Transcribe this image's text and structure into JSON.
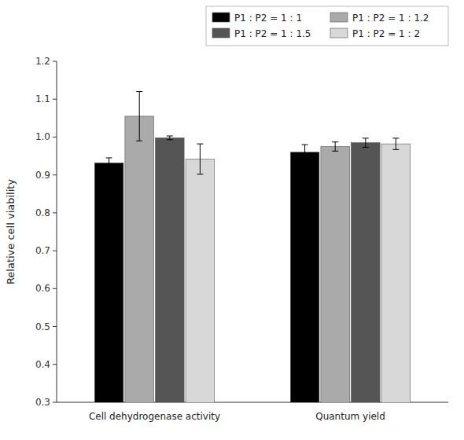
{
  "chart_data": {
    "type": "bar",
    "y_label": "Relative cell viability",
    "categories": [
      "Cell dehydrogenase activity",
      "Quantum yield"
    ],
    "series": [
      {
        "name": "P1 : P2 = 1 : 1",
        "color": "#000000",
        "values": [
          0.932,
          0.96
        ],
        "errors": [
          0.013,
          0.02
        ]
      },
      {
        "name": "P1 : P2 = 1 : 1.2",
        "color": "#aaaaaa",
        "values": [
          1.055,
          0.975
        ],
        "errors": [
          0.065,
          0.012
        ]
      },
      {
        "name": "P1 : P2 = 1 : 1.5",
        "color": "#555555",
        "values": [
          0.998,
          0.985
        ],
        "errors": [
          0.005,
          0.012
        ]
      },
      {
        "name": "P1 : P2 = 1 : 2",
        "color": "#d8d8d8",
        "values": [
          0.942,
          0.982
        ],
        "errors": [
          0.04,
          0.015
        ]
      }
    ],
    "ylim": [
      0.3,
      1.2
    ],
    "yticks": [
      0.3,
      0.4,
      0.5,
      0.6,
      0.7,
      0.8,
      0.9,
      {
        "value": 1.0,
        "label": "1.0"
      },
      1.1,
      1.2
    ],
    "grid": false,
    "legend": "upper right"
  }
}
